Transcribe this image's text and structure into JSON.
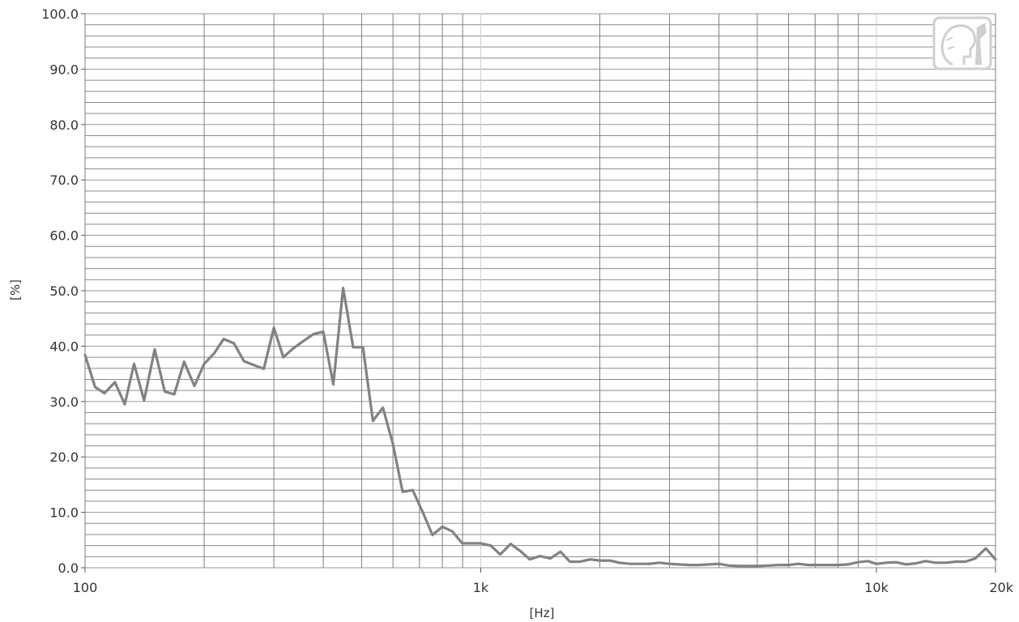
{
  "chart_data": {
    "type": "line",
    "title": "",
    "xlabel": "[Hz]",
    "ylabel": "[%]",
    "xscale": "log",
    "xlim": [
      100,
      20000
    ],
    "ylim": [
      0,
      100
    ],
    "grid": true,
    "x_tick_labels": [
      {
        "value": 100,
        "label": "100"
      },
      {
        "value": 1000,
        "label": "1k"
      },
      {
        "value": 10000,
        "label": "10k"
      },
      {
        "value": 20000,
        "label": "20k"
      }
    ],
    "y_tick_labels": [
      {
        "value": 0,
        "label": "0.0"
      },
      {
        "value": 10,
        "label": "10.0"
      },
      {
        "value": 20,
        "label": "20.0"
      },
      {
        "value": 30,
        "label": "30.0"
      },
      {
        "value": 40,
        "label": "40.0"
      },
      {
        "value": 50,
        "label": "50.0"
      },
      {
        "value": 60,
        "label": "60.0"
      },
      {
        "value": 70,
        "label": "70.0"
      },
      {
        "value": 80,
        "label": "80.0"
      },
      {
        "value": 90,
        "label": "90.0"
      },
      {
        "value": 100,
        "label": "100.0"
      }
    ],
    "series": [
      {
        "color": "#808285",
        "x": [
          100,
          106,
          112,
          119,
          126,
          133,
          141,
          150,
          159,
          168,
          178,
          189,
          200,
          212,
          224,
          238,
          252,
          267,
          283,
          300,
          317,
          336,
          356,
          378,
          400,
          424,
          449,
          476,
          504,
          534,
          566,
          599,
          635,
          673,
          713,
          755,
          800,
          847,
          898,
          951,
          1000,
          1060,
          1120,
          1190,
          1260,
          1330,
          1410,
          1500,
          1590,
          1680,
          1780,
          1890,
          2000,
          2120,
          2240,
          2380,
          2520,
          2670,
          2830,
          3000,
          3170,
          3360,
          3560,
          3780,
          4000,
          4240,
          4490,
          4760,
          5040,
          5340,
          5660,
          5990,
          6350,
          6730,
          7130,
          7550,
          8000,
          8470,
          8980,
          9510,
          10000,
          10600,
          11200,
          11900,
          12600,
          13300,
          14100,
          15000,
          15900,
          16800,
          17800,
          18900,
          20000
        ],
        "values": [
          38.4,
          32.6,
          31.5,
          33.5,
          29.5,
          36.8,
          30.2,
          39.4,
          31.8,
          31.3,
          37.2,
          32.8,
          36.8,
          38.7,
          41.3,
          40.5,
          37.3,
          36.6,
          35.9,
          43.3,
          38.0,
          39.6,
          40.9,
          42.2,
          42.6,
          33.1,
          50.5,
          39.8,
          39.8,
          26.5,
          28.9,
          22.5,
          13.7,
          14.0,
          10.1,
          5.9,
          7.4,
          6.6,
          4.4,
          4.4,
          4.4,
          4.0,
          2.4,
          4.3,
          3.0,
          1.5,
          2.1,
          1.7,
          2.9,
          1.1,
          1.1,
          1.5,
          1.3,
          1.3,
          0.9,
          0.7,
          0.7,
          0.7,
          0.9,
          0.7,
          0.6,
          0.5,
          0.5,
          0.6,
          0.7,
          0.4,
          0.3,
          0.3,
          0.3,
          0.4,
          0.5,
          0.5,
          0.7,
          0.5,
          0.5,
          0.5,
          0.5,
          0.6,
          1.0,
          1.2,
          0.7,
          0.9,
          1.0,
          0.6,
          0.8,
          1.2,
          0.9,
          0.9,
          1.1,
          1.1,
          1.7,
          3.5,
          1.5
        ]
      }
    ]
  }
}
